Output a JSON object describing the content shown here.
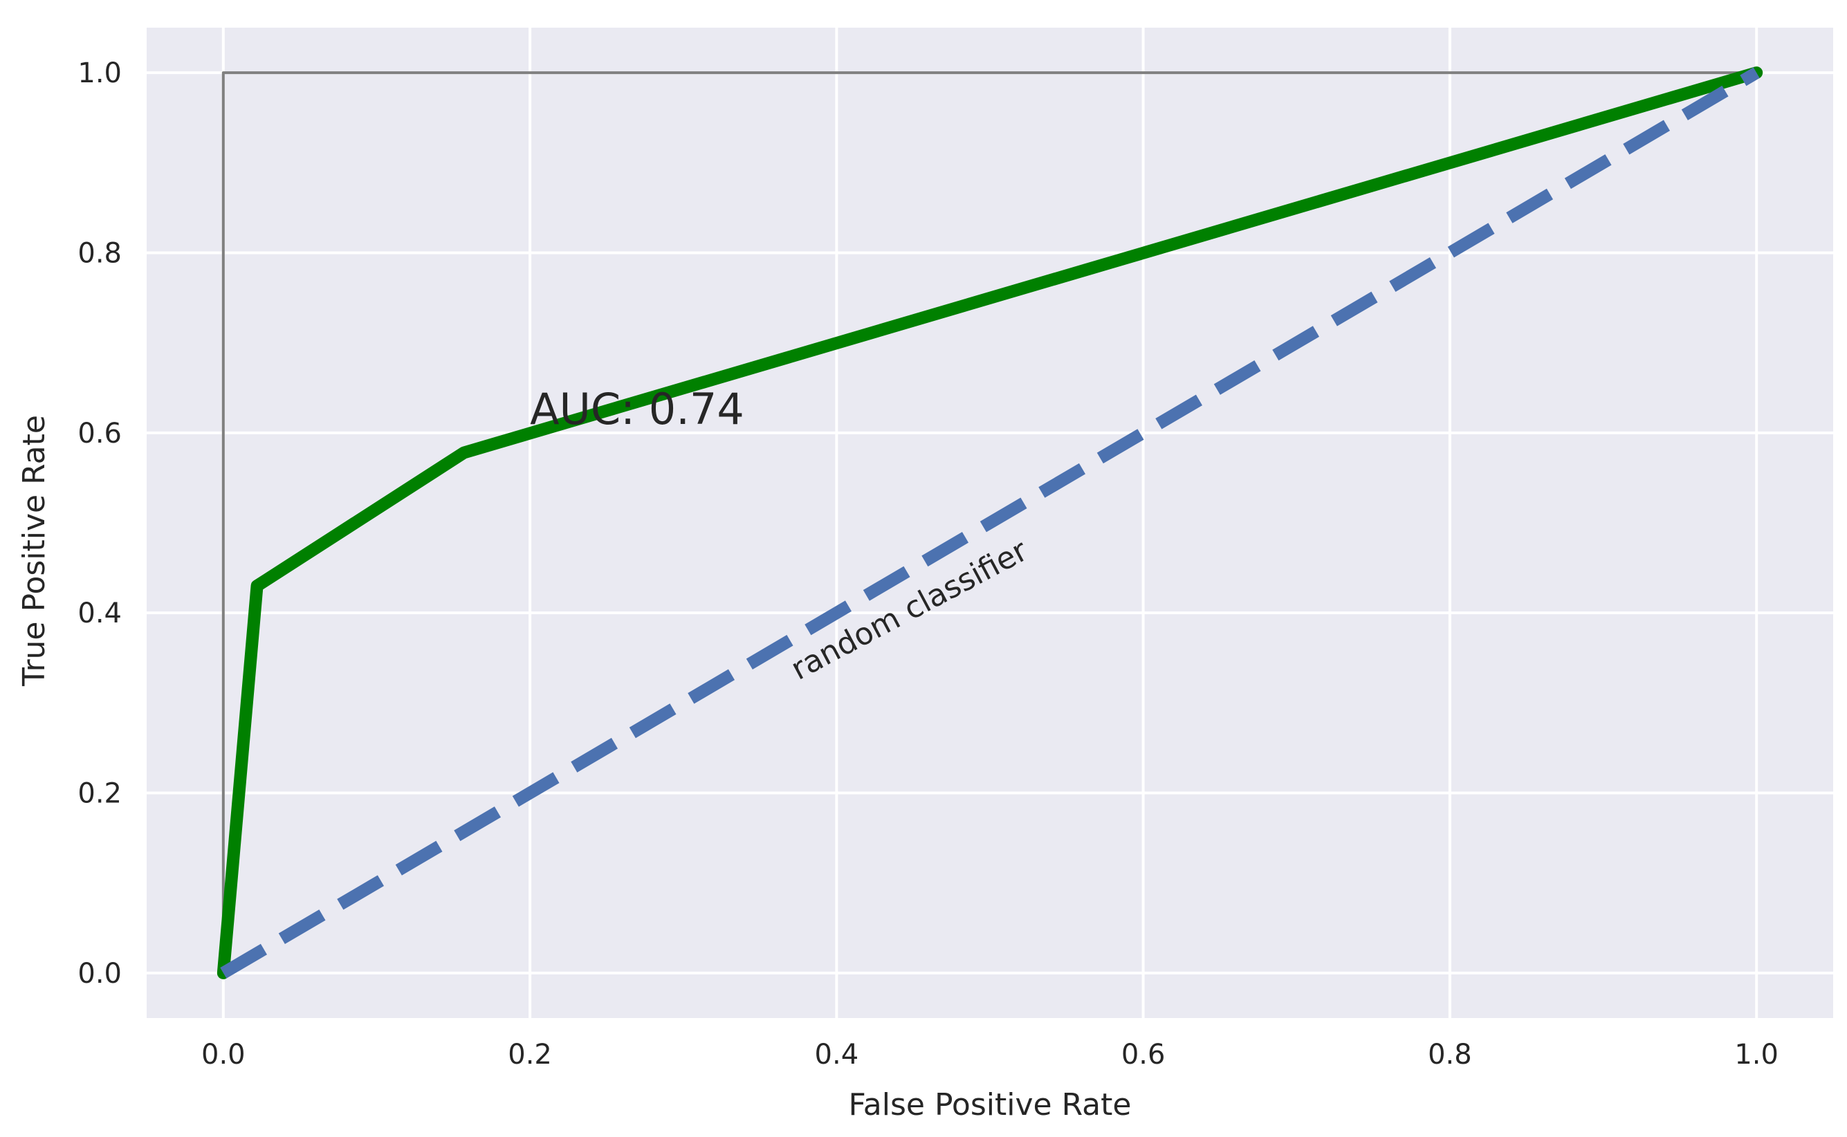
{
  "chart_data": {
    "type": "line",
    "title": "",
    "xlabel": "False Positive Rate",
    "ylabel": "True Positive Rate",
    "xlim": [
      -0.05,
      1.05
    ],
    "ylim": [
      -0.05,
      1.05
    ],
    "xticks": [
      0.0,
      0.2,
      0.4,
      0.6,
      0.8,
      1.0
    ],
    "yticks": [
      0.0,
      0.2,
      0.4,
      0.6,
      0.8,
      1.0
    ],
    "xtick_labels": [
      "0.0",
      "0.2",
      "0.4",
      "0.6",
      "0.8",
      "1.0"
    ],
    "ytick_labels": [
      "0.0",
      "0.2",
      "0.4",
      "0.6",
      "0.8",
      "1.0"
    ],
    "grid": true,
    "series": [
      {
        "style": "solid",
        "color": "#808080",
        "x": [
          0.0,
          0.0,
          1.0
        ],
        "y": [
          0.0,
          1.0,
          1.0
        ]
      },
      {
        "style": "solid",
        "color": "#008000",
        "x": [
          0.0,
          0.022,
          0.157,
          1.0
        ],
        "y": [
          0.0,
          0.43,
          0.578,
          1.0
        ]
      },
      {
        "style": "dashed",
        "color": "#4c72b0",
        "x": [
          0.0,
          1.0
        ],
        "y": [
          0.0,
          1.0
        ]
      }
    ],
    "annotations": [
      {
        "id": "auc",
        "text": "AUC: 0.74",
        "x": 0.2,
        "y": 0.61,
        "rotation": 0
      },
      {
        "id": "random",
        "text": "random classifier",
        "x": 0.375,
        "y": 0.325,
        "rotation": -28
      }
    ],
    "colors": {
      "plot_background": "#eaeaf2",
      "grid": "#ffffff",
      "text": "#262626"
    }
  }
}
